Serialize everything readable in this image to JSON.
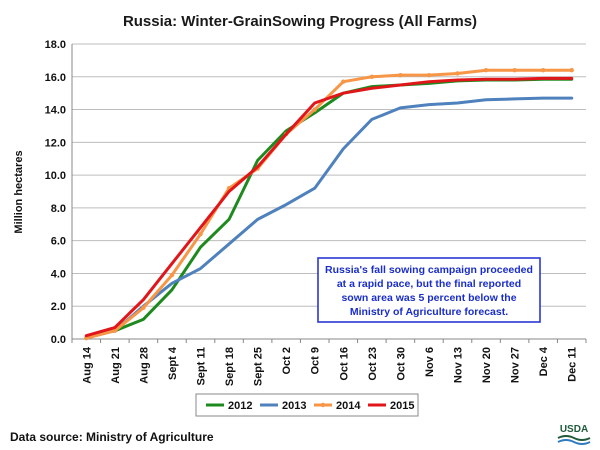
{
  "chart_data": {
    "type": "line",
    "title": "Russia:  Winter-GrainSowing Progress (All Farms)",
    "ylabel": "Million hectares",
    "xlabel": "",
    "ylim": [
      0,
      18
    ],
    "yticks": [
      "0.0",
      "2.0",
      "4.0",
      "6.0",
      "8.0",
      "10.0",
      "12.0",
      "14.0",
      "16.0",
      "18.0"
    ],
    "categories": [
      "Aug 14",
      "Aug 21",
      "Aug 28",
      "Sept 4",
      "Sept 11",
      "Sept 18",
      "Sept 25",
      "Oct 2",
      "Oct 9",
      "Oct 16",
      "Oct 23",
      "Oct 30",
      "Nov 6",
      "Nov 13",
      "Nov 20",
      "Nov 27",
      "Dec 4",
      "Dec 11"
    ],
    "grid": true,
    "legend_position": "bottom",
    "series": [
      {
        "name": "2012",
        "color": "#1e8a1e",
        "marker": false,
        "values": [
          0.1,
          0.5,
          1.2,
          3.0,
          5.6,
          7.3,
          10.9,
          12.7,
          13.8,
          15.0,
          15.4,
          15.5,
          15.6,
          15.75,
          15.8,
          15.8,
          15.85,
          15.85
        ]
      },
      {
        "name": "2013",
        "color": "#4f81bd",
        "marker": false,
        "values": [
          0.15,
          0.5,
          2.0,
          3.4,
          4.3,
          5.8,
          7.3,
          8.2,
          9.2,
          11.6,
          13.4,
          14.1,
          14.3,
          14.4,
          14.6,
          14.65,
          14.7,
          14.7
        ]
      },
      {
        "name": "2014",
        "color": "#f79646",
        "marker": true,
        "values": [
          0.05,
          0.5,
          1.9,
          3.9,
          6.4,
          9.2,
          10.4,
          12.5,
          14.0,
          15.7,
          16.0,
          16.1,
          16.1,
          16.2,
          16.4,
          16.4,
          16.4,
          16.4
        ]
      },
      {
        "name": "2015",
        "color": "#e0161b",
        "marker": false,
        "values": [
          0.2,
          0.7,
          2.4,
          4.6,
          6.8,
          9.0,
          10.5,
          12.5,
          14.4,
          15.0,
          15.3,
          15.5,
          15.7,
          15.8,
          15.85,
          15.85,
          15.9,
          15.9
        ]
      }
    ],
    "annotation": [
      "Russia's fall sowing campaign proceeded",
      "at a rapid pace, but the final reported",
      "sown area was 5 percent below the",
      "Ministry of Agriculture forecast."
    ]
  },
  "footer": {
    "source": "Data source:  Ministry of Agriculture",
    "logo_text": "USDA"
  }
}
